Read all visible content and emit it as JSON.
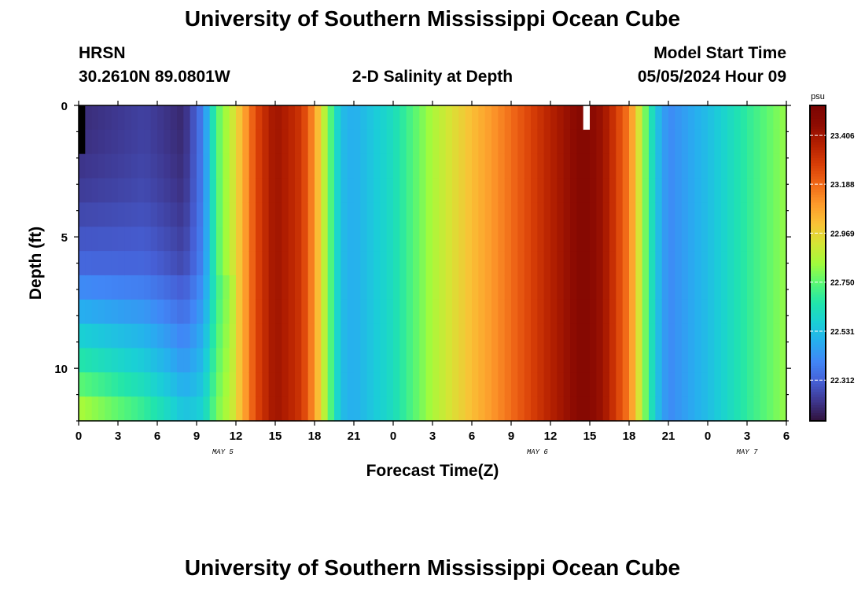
{
  "header": {
    "title": "University of Southern Mississippi Ocean Cube",
    "station": "HRSN",
    "coords": "30.2610N  89.0801W",
    "subtitle": "2-D Salinity at Depth",
    "start_label": "Model Start Time",
    "start_value": "05/05/2024 Hour 09"
  },
  "footer": {
    "title": "University of Southern Mississippi Ocean Cube"
  },
  "colors": {
    "background": "#ffffff",
    "frame": "#000000",
    "missing": "#ffffff",
    "colormap": [
      "#30123b",
      "#3e378f",
      "#4660d6",
      "#4186f6",
      "#27aeef",
      "#1ad0d5",
      "#22e5aa",
      "#59f773",
      "#a3fb3b",
      "#d5e435",
      "#f9c236",
      "#fd9a2b",
      "#f06817",
      "#d83e07",
      "#b52001",
      "#8e0c02",
      "#7a0403"
    ]
  },
  "chart_data": {
    "type": "heatmap",
    "title": "2-D Salinity at Depth",
    "xlabel": "Forecast Time(Z)",
    "ylabel": "Depth (ft)",
    "x_tick_values": [
      0,
      3,
      6,
      9,
      12,
      15,
      18,
      21,
      24,
      27,
      30,
      33,
      36,
      39,
      42,
      45,
      48,
      51,
      54
    ],
    "x_tick_labels": [
      "0",
      "3",
      "6",
      "9",
      "12",
      "15",
      "18",
      "21",
      "0",
      "3",
      "6",
      "9",
      "12",
      "15",
      "18",
      "21",
      "0",
      "3",
      "6"
    ],
    "xlim": [
      0,
      54
    ],
    "x_step_hours": 0.5,
    "date_labels": [
      {
        "hour": 11,
        "label": "MAY 5"
      },
      {
        "hour": 35,
        "label": "MAY 6"
      },
      {
        "hour": 51,
        "label": "MAY 7"
      }
    ],
    "y_tick_values": [
      0,
      5,
      10
    ],
    "y_tick_labels": [
      "0",
      "5",
      "10"
    ],
    "ylim": [
      0,
      12
    ],
    "depth_levels_ft": [
      0,
      1,
      2,
      3,
      4,
      5,
      6,
      7,
      8,
      9,
      10,
      11,
      12
    ],
    "colorbar": {
      "unit": "psu",
      "vmin": 22.13,
      "vmax": 23.54,
      "tick_values": [
        22.312,
        22.531,
        22.75,
        22.969,
        23.188,
        23.406
      ],
      "tick_labels": [
        "22.312",
        "22.531",
        "22.750",
        "22.969",
        "23.188",
        "23.406"
      ]
    },
    "time_profile_psu": [
      {
        "hour": 0,
        "value": 22.19
      },
      {
        "hour": 5,
        "value": 22.25
      },
      {
        "hour": 8,
        "value": 22.18
      },
      {
        "hour": 9.5,
        "value": 22.4
      },
      {
        "hour": 10.5,
        "value": 22.75
      },
      {
        "hour": 12,
        "value": 22.95
      },
      {
        "hour": 13.5,
        "value": 23.25
      },
      {
        "hour": 15,
        "value": 23.42
      },
      {
        "hour": 17,
        "value": 23.3
      },
      {
        "hour": 18,
        "value": 23.1
      },
      {
        "hour": 19,
        "value": 22.8
      },
      {
        "hour": 20,
        "value": 22.52
      },
      {
        "hour": 21,
        "value": 22.48
      },
      {
        "hour": 24,
        "value": 22.62
      },
      {
        "hour": 27,
        "value": 22.85
      },
      {
        "hour": 30,
        "value": 23.02
      },
      {
        "hour": 33,
        "value": 23.18
      },
      {
        "hour": 36,
        "value": 23.36
      },
      {
        "hour": 38.5,
        "value": 23.5
      },
      {
        "hour": 40,
        "value": 23.42
      },
      {
        "hour": 42,
        "value": 23.15
      },
      {
        "hour": 43,
        "value": 22.85
      },
      {
        "hour": 44,
        "value": 22.55
      },
      {
        "hour": 45,
        "value": 22.4
      },
      {
        "hour": 48,
        "value": 22.52
      },
      {
        "hour": 51,
        "value": 22.68
      },
      {
        "hour": 54,
        "value": 22.82
      }
    ],
    "early_depth_profile_psu": [
      22.2,
      22.22,
      22.25,
      22.28,
      22.32,
      22.36,
      22.4,
      22.5,
      22.58,
      22.66,
      22.72,
      22.78,
      22.84
    ],
    "early_depth_blend_end_hour": 12,
    "missing_cells": [
      {
        "hour": 0,
        "depth_ft": 0
      },
      {
        "hour": 0,
        "depth_ft": 1
      },
      {
        "hour": 38.5,
        "depth_ft": 0
      }
    ]
  }
}
